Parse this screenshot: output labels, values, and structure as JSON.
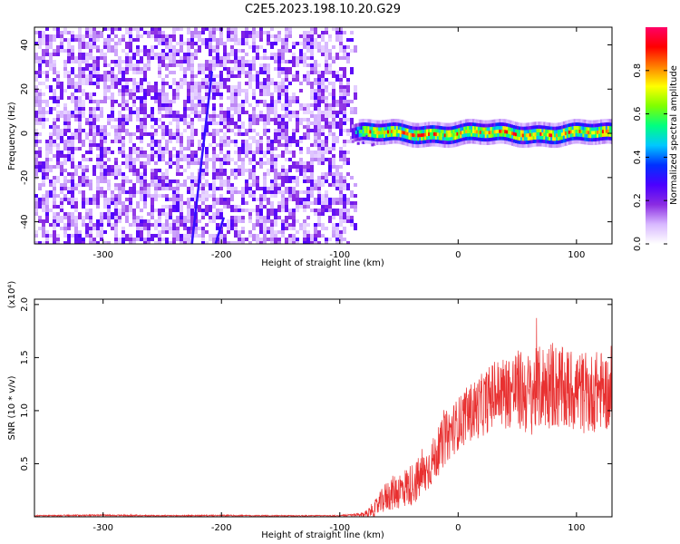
{
  "figure_title": "C2E5.2023.198.10.20.G29",
  "chart_data": [
    {
      "type": "heatmap",
      "title": "C2E5.2023.198.10.20.G29",
      "xlabel": "Height of straight line (km)",
      "ylabel": "Frequency (Hz)",
      "xlim": [
        -358,
        130
      ],
      "ylim": [
        -50,
        48
      ],
      "x_ticks": [
        -300,
        -200,
        -100,
        0,
        100
      ],
      "x_tick_labels": [
        "-300",
        "-200",
        "-100",
        "0",
        "100"
      ],
      "y_ticks": [
        -40,
        -20,
        0,
        20,
        40
      ],
      "y_tick_labels": [
        "-40",
        "-20",
        "0",
        "20",
        "40"
      ],
      "colorbar": {
        "label": "Normalized spectral amplitude",
        "range": [
          0,
          1
        ],
        "ticks": [
          0.0,
          0.2,
          0.4,
          0.6,
          0.8
        ],
        "tick_labels": [
          "0.0",
          "0.2",
          "0.4",
          "0.6",
          "0.8"
        ],
        "colormap": "rainbow",
        "stops": [
          "#ffffff",
          "#d8b8ff",
          "#8a2be2",
          "#4b00ff",
          "#0030ff",
          "#00c8ff",
          "#00ff80",
          "#7fff00",
          "#ffff00",
          "#ff8000",
          "#ff0000",
          "#ff0066"
        ]
      },
      "noise_region": {
        "x_range": [
          -358,
          -90
        ],
        "freq_range": [
          -50,
          48
        ],
        "amplitude_range": [
          0.0,
          0.15
        ]
      },
      "signal_band": {
        "x_range": [
          -90,
          130
        ],
        "center_freq": 0,
        "half_width": 3,
        "peak_amplitude": 0.95
      },
      "streaks": [
        {
          "x_start": -225,
          "freq_start": -50,
          "x_end": -208,
          "freq_end": 28
        },
        {
          "x_start": -205,
          "freq_start": -50,
          "x_end": -198,
          "freq_end": -38
        }
      ]
    },
    {
      "type": "line",
      "xlabel": "Height of straight line (km)",
      "ylabel": "SNR (10 * v/v)",
      "scale_label": "(x10⁴)",
      "xlim": [
        -358,
        130
      ],
      "ylim": [
        0,
        2.05
      ],
      "x_ticks": [
        -300,
        -200,
        -100,
        0,
        100
      ],
      "x_tick_labels": [
        "-300",
        "-200",
        "-100",
        "0",
        "100"
      ],
      "y_ticks": [
        0.5,
        1.0,
        1.5,
        2.0
      ],
      "y_tick_labels": [
        "0.5",
        "1.0",
        "1.5",
        "2.0"
      ],
      "series": [
        {
          "name": "SNR",
          "color": "#e83030",
          "x": [
            -358,
            -300,
            -250,
            -200,
            -150,
            -100,
            -80,
            -70,
            -60,
            -50,
            -40,
            -30,
            -20,
            -10,
            0,
            10,
            20,
            30,
            40,
            50,
            60,
            70,
            80,
            90,
            100,
            110,
            120,
            130
          ],
          "y": [
            0.01,
            0.015,
            0.01,
            0.012,
            0.01,
            0.01,
            0.02,
            0.08,
            0.2,
            0.25,
            0.3,
            0.38,
            0.55,
            0.75,
            0.88,
            0.98,
            1.05,
            1.15,
            1.18,
            1.2,
            1.15,
            1.22,
            1.25,
            1.18,
            1.2,
            1.15,
            1.2,
            1.15
          ],
          "noise_amplitude": [
            0.005,
            0.008,
            0.006,
            0.007,
            0.005,
            0.006,
            0.02,
            0.08,
            0.15,
            0.18,
            0.2,
            0.22,
            0.22,
            0.25,
            0.25,
            0.28,
            0.3,
            0.32,
            0.35,
            0.38,
            0.4,
            0.4,
            0.42,
            0.4,
            0.4,
            0.38,
            0.38,
            0.35
          ]
        }
      ]
    }
  ]
}
